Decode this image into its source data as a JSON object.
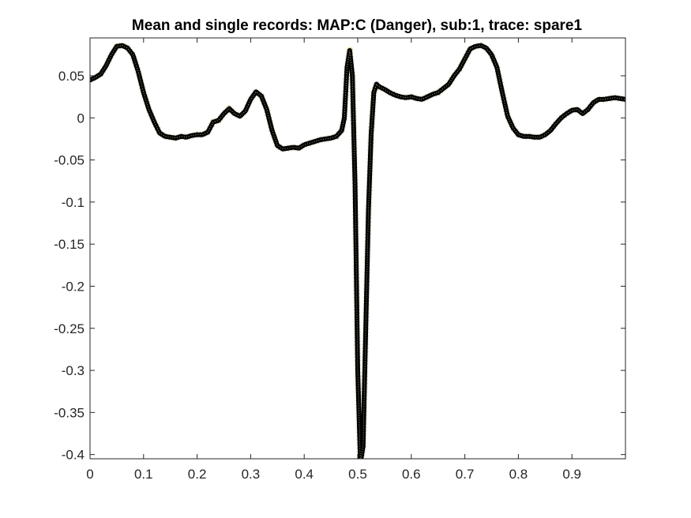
{
  "chart_data": {
    "type": "line",
    "title": "Mean and single records: MAP:C (Danger), sub:1, trace: spare1",
    "xlabel": "",
    "ylabel": "",
    "xlim": [
      0,
      1
    ],
    "ylim": [
      -0.405,
      0.095
    ],
    "grid": false,
    "legend": "none",
    "x_ticks": [
      {
        "value": 0,
        "label": "0"
      },
      {
        "value": 0.1,
        "label": "0.1"
      },
      {
        "value": 0.2,
        "label": "0.2"
      },
      {
        "value": 0.3,
        "label": "0.3"
      },
      {
        "value": 0.4,
        "label": "0.4"
      },
      {
        "value": 0.5,
        "label": "0.5"
      },
      {
        "value": 0.6,
        "label": "0.6"
      },
      {
        "value": 0.7,
        "label": "0.7"
      },
      {
        "value": 0.8,
        "label": "0.8"
      },
      {
        "value": 0.9,
        "label": "0.9"
      }
    ],
    "y_ticks": [
      {
        "value": 0.05,
        "label": "0.05"
      },
      {
        "value": 0,
        "label": "0"
      },
      {
        "value": -0.05,
        "label": "-0.05"
      },
      {
        "value": -0.1,
        "label": "-0.1"
      },
      {
        "value": -0.15,
        "label": "-0.15"
      },
      {
        "value": -0.2,
        "label": "-0.2"
      },
      {
        "value": -0.25,
        "label": "-0.25"
      },
      {
        "value": -0.3,
        "label": "-0.3"
      },
      {
        "value": -0.35,
        "label": "-0.35"
      },
      {
        "value": -0.4,
        "label": "-0.4"
      }
    ],
    "series": [
      {
        "color": "#000000",
        "style": "thick solid",
        "x": [
          0,
          0.01,
          0.02,
          0.03,
          0.04,
          0.05,
          0.06,
          0.07,
          0.08,
          0.09,
          0.1,
          0.11,
          0.12,
          0.13,
          0.14,
          0.15,
          0.16,
          0.17,
          0.18,
          0.19,
          0.2,
          0.21,
          0.22,
          0.23,
          0.24,
          0.25,
          0.26,
          0.27,
          0.28,
          0.29,
          0.3,
          0.31,
          0.32,
          0.33,
          0.34,
          0.35,
          0.36,
          0.37,
          0.38,
          0.39,
          0.4,
          0.41,
          0.42,
          0.43,
          0.44,
          0.45,
          0.46,
          0.47,
          0.475,
          0.48,
          0.485,
          0.49,
          0.495,
          0.5,
          0.505,
          0.51,
          0.515,
          0.52,
          0.525,
          0.53,
          0.535,
          0.54,
          0.55,
          0.56,
          0.57,
          0.58,
          0.59,
          0.6,
          0.61,
          0.62,
          0.63,
          0.64,
          0.65,
          0.66,
          0.67,
          0.68,
          0.69,
          0.7,
          0.71,
          0.72,
          0.73,
          0.74,
          0.75,
          0.76,
          0.77,
          0.78,
          0.79,
          0.8,
          0.81,
          0.82,
          0.83,
          0.84,
          0.85,
          0.86,
          0.87,
          0.88,
          0.89,
          0.9,
          0.91,
          0.92,
          0.93,
          0.94,
          0.95,
          0.96,
          0.97,
          0.98,
          0.99,
          1.0
        ],
        "y": [
          0.045,
          0.048,
          0.052,
          0.062,
          0.075,
          0.085,
          0.086,
          0.083,
          0.075,
          0.055,
          0.03,
          0.01,
          -0.005,
          -0.018,
          -0.022,
          -0.023,
          -0.024,
          -0.022,
          -0.023,
          -0.021,
          -0.02,
          -0.02,
          -0.017,
          -0.005,
          -0.003,
          0.005,
          0.011,
          0.005,
          0.002,
          0.008,
          0.022,
          0.031,
          0.026,
          0.01,
          -0.015,
          -0.033,
          -0.037,
          -0.036,
          -0.035,
          -0.036,
          -0.032,
          -0.03,
          -0.028,
          -0.026,
          -0.025,
          -0.024,
          -0.022,
          -0.015,
          0.0,
          0.06,
          0.08,
          0.05,
          -0.08,
          -0.3,
          -0.41,
          -0.39,
          -0.25,
          -0.11,
          -0.02,
          0.03,
          0.04,
          0.037,
          0.034,
          0.03,
          0.027,
          0.025,
          0.024,
          0.025,
          0.023,
          0.022,
          0.025,
          0.028,
          0.03,
          0.035,
          0.04,
          0.05,
          0.058,
          0.07,
          0.082,
          0.085,
          0.086,
          0.083,
          0.075,
          0.06,
          0.03,
          0.002,
          -0.012,
          -0.02,
          -0.022,
          -0.022,
          -0.023,
          -0.023,
          -0.02,
          -0.015,
          -0.007,
          0.0,
          0.005,
          0.009,
          0.01,
          0.005,
          0.01,
          0.018,
          0.022,
          0.022,
          0.023,
          0.024,
          0.023,
          0.022
        ]
      }
    ]
  }
}
